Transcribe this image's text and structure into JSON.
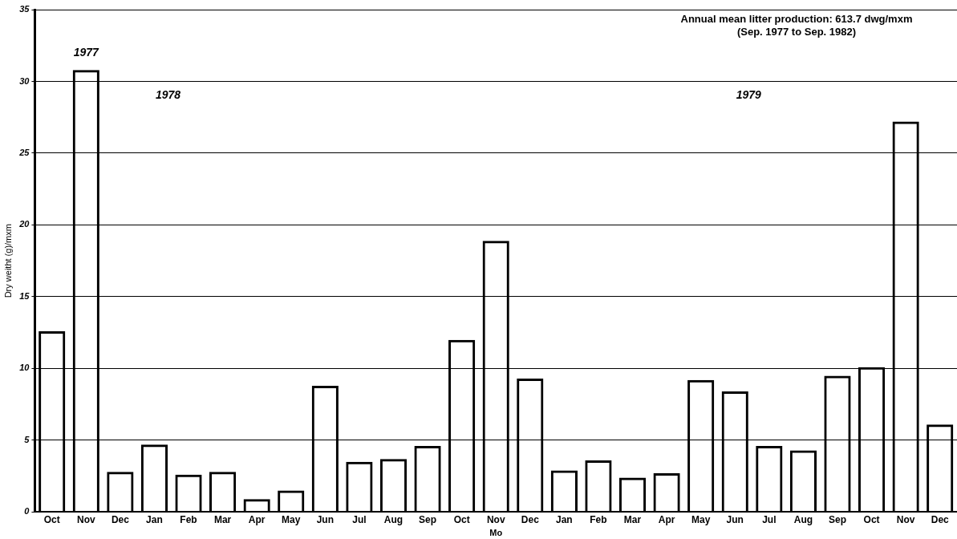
{
  "chart_data": {
    "type": "bar",
    "xlabel": "Mo",
    "ylabel": "Dry weitht (g)/mxm",
    "categories": [
      "Oct",
      "Nov",
      "Dec",
      "Jan",
      "Feb",
      "Mar",
      "Apr",
      "May",
      "Jun",
      "Jul",
      "Aug",
      "Sep",
      "Oct",
      "Nov",
      "Dec",
      "Jan",
      "Feb",
      "Mar",
      "Apr",
      "May",
      "Jun",
      "Jul",
      "Aug",
      "Sep",
      "Oct",
      "Nov",
      "Dec"
    ],
    "values": [
      12.6,
      30.8,
      2.8,
      4.7,
      2.6,
      2.8,
      0.9,
      1.5,
      8.8,
      3.5,
      3.7,
      4.6,
      12.0,
      18.9,
      9.3,
      2.9,
      3.6,
      2.4,
      2.7,
      9.2,
      8.4,
      4.6,
      4.3,
      9.5,
      10.1,
      27.2,
      6.1
    ],
    "color": "#000000",
    "ylim": [
      0,
      35
    ],
    "yticks": [
      0,
      5,
      10,
      15,
      20,
      25,
      30,
      35
    ],
    "grid": "y",
    "annotations": [
      "Annual mean litter production: 613.7 dwg/mxm\n(Sep. 1977 to Sep. 1982)",
      "1977",
      "1978",
      "1979"
    ]
  }
}
